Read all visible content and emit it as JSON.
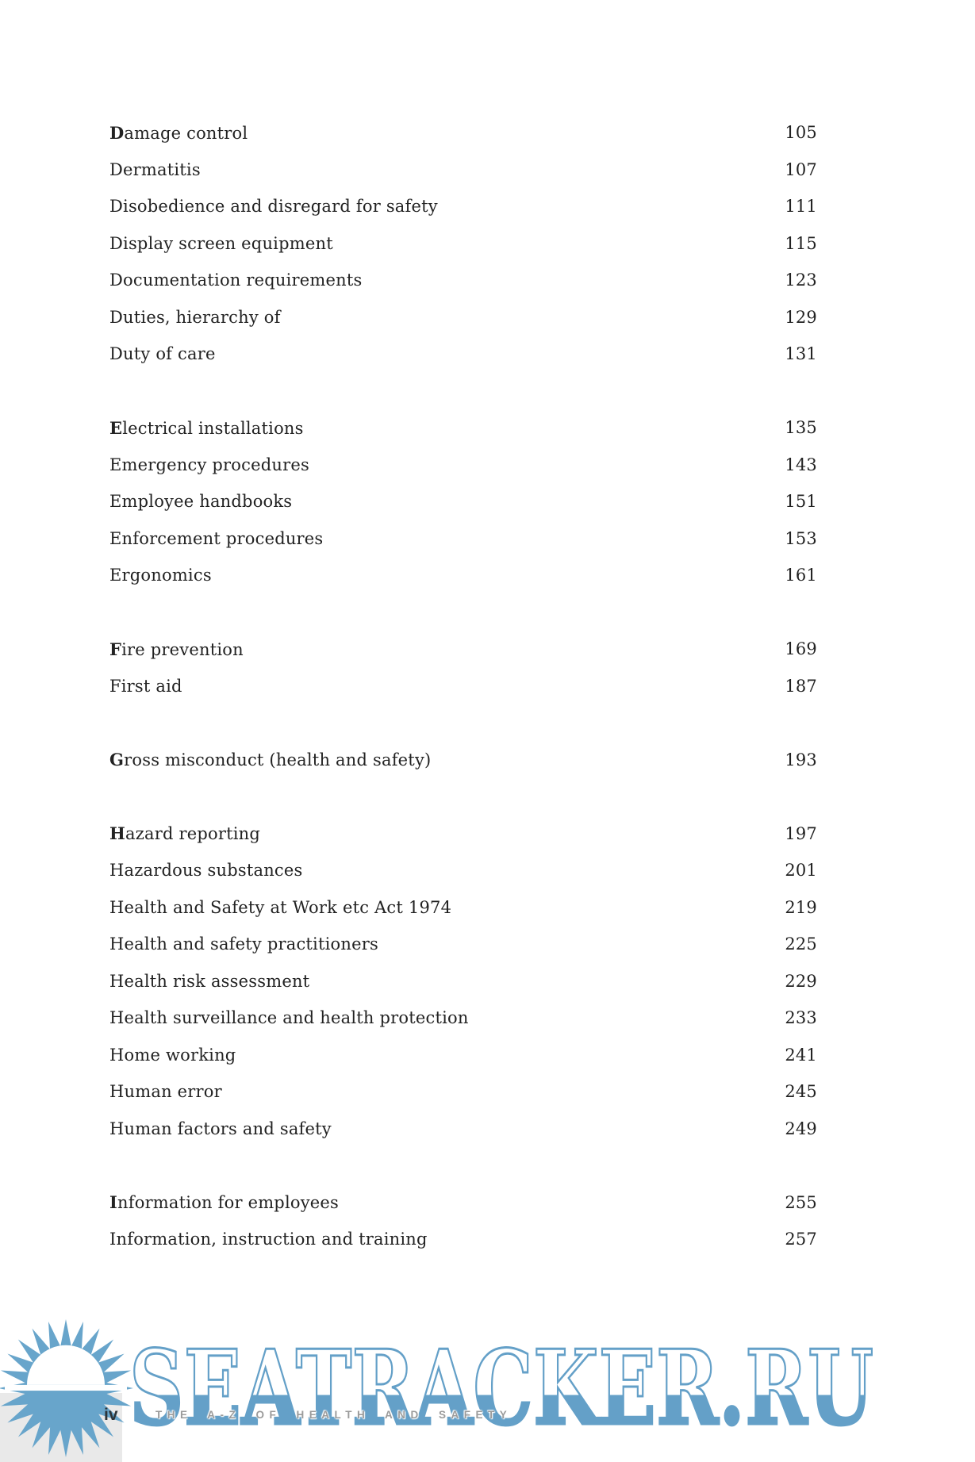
{
  "toc": {
    "sections": [
      {
        "letter": "D",
        "entries": [
          {
            "title": "Damage control",
            "page": "105",
            "lead": true
          },
          {
            "title": "Dermatitis",
            "page": "107"
          },
          {
            "title": "Disobedience and disregard for safety",
            "page": "111"
          },
          {
            "title": "Display screen equipment",
            "page": "115"
          },
          {
            "title": "Documentation requirements",
            "page": "123"
          },
          {
            "title": "Duties, hierarchy of",
            "page": "129"
          },
          {
            "title": "Duty of care",
            "page": "131"
          }
        ]
      },
      {
        "letter": "E",
        "entries": [
          {
            "title": "Electrical installations",
            "page": "135",
            "lead": true
          },
          {
            "title": "Emergency procedures",
            "page": "143"
          },
          {
            "title": "Employee handbooks",
            "page": "151"
          },
          {
            "title": "Enforcement procedures",
            "page": "153"
          },
          {
            "title": "Ergonomics",
            "page": "161"
          }
        ]
      },
      {
        "letter": "F",
        "entries": [
          {
            "title": "Fire prevention",
            "page": "169",
            "lead": true
          },
          {
            "title": "First aid",
            "page": "187"
          }
        ]
      },
      {
        "letter": "G",
        "entries": [
          {
            "title": "Gross misconduct (health and safety)",
            "page": "193",
            "lead": true
          }
        ]
      },
      {
        "letter": "H",
        "entries": [
          {
            "title": "Hazard reporting",
            "page": "197",
            "lead": true
          },
          {
            "title": "Hazardous substances",
            "page": "201"
          },
          {
            "title": "Health and Safety at Work etc Act 1974",
            "page": "219"
          },
          {
            "title": "Health and safety practitioners",
            "page": "225"
          },
          {
            "title": "Health risk assessment",
            "page": "229"
          },
          {
            "title": "Health surveillance and health protection",
            "page": "233"
          },
          {
            "title": "Home working",
            "page": "241"
          },
          {
            "title": "Human error",
            "page": "245"
          },
          {
            "title": "Human factors and safety",
            "page": "249"
          }
        ]
      },
      {
        "letter": "I",
        "entries": [
          {
            "title": "Information for employees",
            "page": "255",
            "lead": true
          },
          {
            "title": "Information, instruction and training",
            "page": "257"
          }
        ]
      }
    ]
  },
  "footer": {
    "page_number": "iv",
    "book_title": "THE A-Z OF HEALTH AND SAFETY"
  },
  "watermark": {
    "text": "SEATRACKER.RU",
    "color": "#64a0c8"
  },
  "logo": {
    "name": "sun-over-sea",
    "color": "#68a5cb"
  }
}
